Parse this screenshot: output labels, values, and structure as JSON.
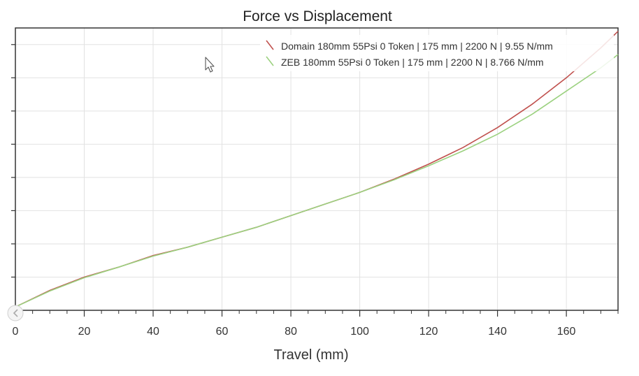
{
  "chart_data": {
    "type": "line",
    "title": "Force vs Displacement",
    "xlabel": "Travel (mm)",
    "ylabel": "",
    "xlim": [
      0,
      175
    ],
    "ylim": [
      0,
      8.5
    ],
    "x_ticks": [
      0,
      20,
      40,
      60,
      80,
      100,
      120,
      140,
      160
    ],
    "x_tick_labels": [
      "0",
      "20",
      "40",
      "60",
      "80",
      "100",
      "120",
      "140",
      "160"
    ],
    "y_ticks": [
      0,
      1,
      2,
      3,
      4,
      5,
      6,
      7,
      8
    ],
    "grid": true,
    "legend_position": "top-right",
    "series": [
      {
        "name": "Domain 180mm 55Psi 0 Token | 175 mm | 2200 N | 9.55 N/mm",
        "color": "#c0504d",
        "x": [
          0,
          10,
          20,
          30,
          40,
          50,
          60,
          70,
          80,
          90,
          100,
          110,
          120,
          130,
          140,
          150,
          160,
          170,
          175
        ],
        "y": [
          0.1,
          0.6,
          1.0,
          1.3,
          1.65,
          1.9,
          2.2,
          2.5,
          2.85,
          3.2,
          3.55,
          3.95,
          4.4,
          4.9,
          5.5,
          6.2,
          7.0,
          7.9,
          8.4
        ]
      },
      {
        "name": "ZEB 180mm 55Psi 0 Token | 175 mm | 2200 N | 8.766 N/mm",
        "color": "#9bd17f",
        "x": [
          0,
          10,
          20,
          30,
          40,
          50,
          60,
          70,
          80,
          90,
          100,
          110,
          120,
          130,
          140,
          150,
          160,
          170,
          175
        ],
        "y": [
          0.1,
          0.58,
          0.98,
          1.3,
          1.63,
          1.9,
          2.2,
          2.5,
          2.85,
          3.2,
          3.55,
          3.93,
          4.35,
          4.8,
          5.3,
          5.9,
          6.6,
          7.3,
          7.7
        ]
      }
    ]
  }
}
